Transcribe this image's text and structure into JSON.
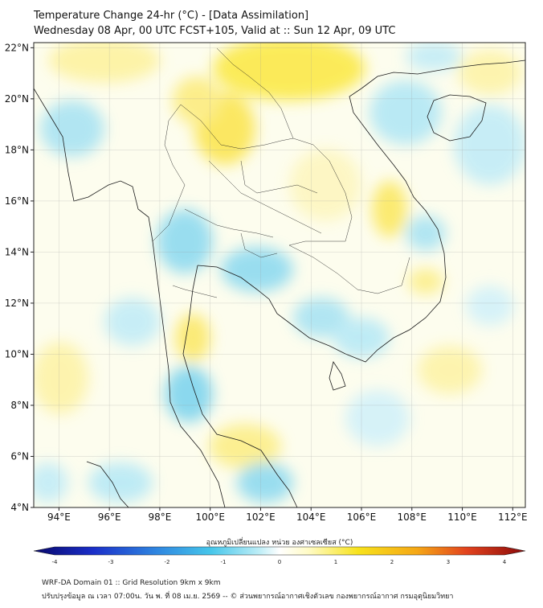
{
  "title": {
    "line1": "Temperature Change 24-hr (°C) - [Data Assimilation]",
    "line2": "Wednesday 08 Apr, 00 UTC FCST+105, Valid at :: Sun 12 Apr, 09 UTC"
  },
  "map": {
    "lon_range": [
      93,
      112.5
    ],
    "lat_range": [
      4,
      22.2
    ],
    "lon_ticks": [
      "94°E",
      "96°E",
      "98°E",
      "100°E",
      "102°E",
      "104°E",
      "106°E",
      "108°E",
      "110°E",
      "112°E"
    ],
    "lat_ticks": [
      "22°N",
      "20°N",
      "18°N",
      "16°N",
      "14°N",
      "12°N",
      "10°N",
      "8°N",
      "6°N",
      "4°N"
    ],
    "grid": true
  },
  "colorbar": {
    "title": "อุณหภูมิเปลี่ยนแปลง หน่วย องศาเซลเซียส (°C)",
    "ticks": [
      "-4",
      "-3",
      "-2",
      "-1",
      "0",
      "1",
      "2",
      "3",
      "4"
    ],
    "range": [
      -4,
      4
    ],
    "colors": [
      "#08086b",
      "#1a2ec8",
      "#2f86e0",
      "#46c6ea",
      "#bfeef7",
      "#ffffff",
      "#fffbc4",
      "#f7e21c",
      "#f5a716",
      "#e2431e",
      "#8b0a0a"
    ]
  },
  "footer": {
    "line1": "WRF-DA Domain 01 :: Grid Resolution 9km x 9km",
    "line2": "ปรับปรุงข้อมูล ณ เวลา 07:00น. วัน พ. ที่ 08 เม.ย. 2569 -- © ส่วนพยากรณ์อากาศเชิงตัวเลข กองพยากรณ์อากาศ กรมอุตุนิยมวิทยา"
  }
}
